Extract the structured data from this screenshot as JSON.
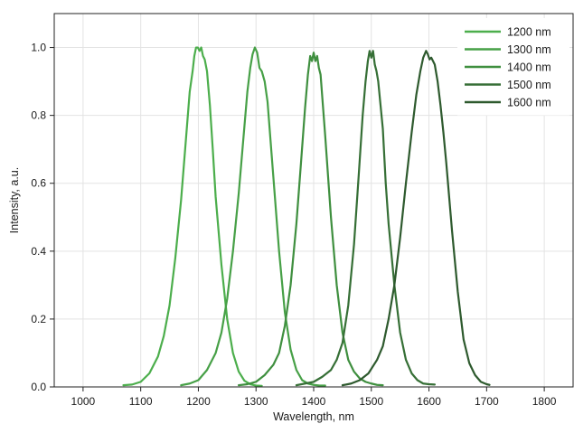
{
  "chart_data": {
    "type": "line",
    "title": "",
    "xlabel": "Wavelength, nm",
    "ylabel": "Intensity, a.u.",
    "xlim": [
      950,
      1850
    ],
    "ylim": [
      0,
      1.1
    ],
    "xticks": [
      1000,
      1100,
      1200,
      1300,
      1400,
      1500,
      1600,
      1700,
      1800
    ],
    "yticks": [
      0.0,
      0.2,
      0.4,
      0.6,
      0.8,
      1.0
    ],
    "xtick_labels": [
      "1000",
      "1100",
      "1200",
      "1300",
      "1400",
      "1500",
      "1600",
      "1700",
      "1800"
    ],
    "ytick_labels": [
      "0.0",
      "0.2",
      "0.4",
      "0.6",
      "0.8",
      "1.0"
    ],
    "grid": true,
    "legend_position": "top-right",
    "series": [
      {
        "name": "1200 nm",
        "color": "#4cae4c",
        "x": [
          1070,
          1085,
          1100,
          1115,
          1130,
          1140,
          1150,
          1160,
          1170,
          1178,
          1185,
          1190,
          1193,
          1196,
          1199,
          1202,
          1205,
          1208,
          1211,
          1215,
          1220,
          1225,
          1230,
          1240,
          1250,
          1260,
          1270,
          1280,
          1290,
          1300,
          1310
        ],
        "y": [
          0.005,
          0.007,
          0.015,
          0.04,
          0.09,
          0.15,
          0.24,
          0.38,
          0.55,
          0.72,
          0.87,
          0.93,
          0.975,
          1.0,
          1.0,
          0.99,
          1.0,
          0.975,
          0.965,
          0.93,
          0.83,
          0.7,
          0.56,
          0.36,
          0.2,
          0.1,
          0.045,
          0.018,
          0.008,
          0.004,
          0.003
        ]
      },
      {
        "name": "1300 nm",
        "color": "#47a047",
        "x": [
          1170,
          1185,
          1200,
          1215,
          1230,
          1240,
          1250,
          1260,
          1270,
          1278,
          1285,
          1290,
          1294,
          1298,
          1302,
          1306,
          1310,
          1315,
          1320,
          1325,
          1330,
          1340,
          1350,
          1360,
          1370,
          1380,
          1390,
          1400,
          1410,
          1420
        ],
        "y": [
          0.005,
          0.01,
          0.02,
          0.05,
          0.1,
          0.16,
          0.26,
          0.4,
          0.57,
          0.73,
          0.87,
          0.94,
          0.98,
          1.0,
          0.985,
          0.94,
          0.93,
          0.9,
          0.84,
          0.73,
          0.62,
          0.4,
          0.22,
          0.11,
          0.05,
          0.02,
          0.01,
          0.006,
          0.004,
          0.004
        ]
      },
      {
        "name": "1400 nm",
        "color": "#3f8f3f",
        "x": [
          1270,
          1285,
          1300,
          1315,
          1330,
          1340,
          1350,
          1360,
          1370,
          1378,
          1385,
          1390,
          1394,
          1397,
          1400,
          1403,
          1406,
          1409,
          1412,
          1416,
          1420,
          1425,
          1430,
          1440,
          1450,
          1460,
          1470,
          1480,
          1490,
          1500,
          1510,
          1520
        ],
        "y": [
          0.005,
          0.008,
          0.015,
          0.035,
          0.065,
          0.1,
          0.18,
          0.3,
          0.48,
          0.66,
          0.82,
          0.92,
          0.975,
          0.96,
          0.985,
          0.96,
          0.975,
          0.94,
          0.92,
          0.83,
          0.74,
          0.62,
          0.5,
          0.3,
          0.16,
          0.08,
          0.045,
          0.025,
          0.015,
          0.01,
          0.006,
          0.005
        ]
      },
      {
        "name": "1500 nm",
        "color": "#366f36",
        "x": [
          1370,
          1385,
          1400,
          1415,
          1430,
          1440,
          1450,
          1460,
          1470,
          1478,
          1485,
          1490,
          1494,
          1497,
          1500,
          1503,
          1506,
          1509,
          1512,
          1516,
          1520,
          1525,
          1530,
          1540,
          1550,
          1560,
          1570,
          1580,
          1590,
          1600,
          1610
        ],
        "y": [
          0.005,
          0.01,
          0.015,
          0.03,
          0.05,
          0.08,
          0.13,
          0.24,
          0.42,
          0.62,
          0.8,
          0.9,
          0.96,
          0.99,
          0.97,
          0.99,
          0.95,
          0.93,
          0.9,
          0.83,
          0.76,
          0.6,
          0.48,
          0.3,
          0.16,
          0.08,
          0.04,
          0.02,
          0.01,
          0.008,
          0.007
        ]
      },
      {
        "name": "1600 nm",
        "color": "#2e5a2e",
        "x": [
          1450,
          1465,
          1480,
          1495,
          1510,
          1520,
          1530,
          1540,
          1550,
          1560,
          1570,
          1578,
          1585,
          1590,
          1595,
          1598,
          1601,
          1604,
          1607,
          1610,
          1615,
          1620,
          1625,
          1630,
          1640,
          1650,
          1660,
          1670,
          1680,
          1690,
          1700,
          1705
        ],
        "y": [
          0.005,
          0.01,
          0.02,
          0.04,
          0.08,
          0.12,
          0.2,
          0.3,
          0.44,
          0.6,
          0.75,
          0.86,
          0.93,
          0.97,
          0.99,
          0.98,
          0.965,
          0.97,
          0.96,
          0.95,
          0.9,
          0.83,
          0.75,
          0.66,
          0.46,
          0.28,
          0.14,
          0.07,
          0.035,
          0.015,
          0.008,
          0.006
        ]
      }
    ]
  }
}
